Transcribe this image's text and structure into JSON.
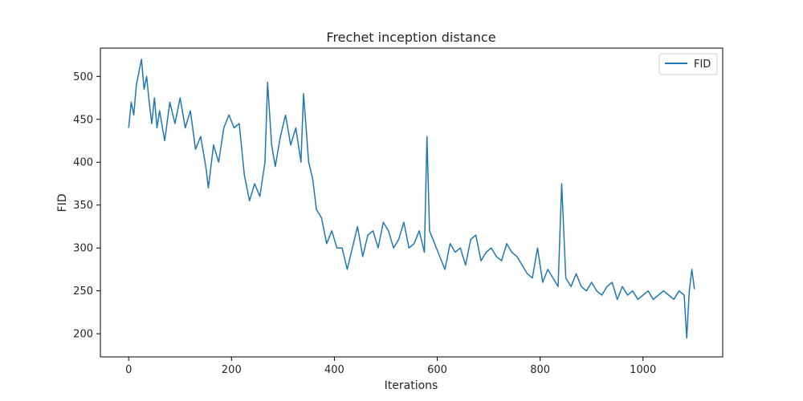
{
  "chart_data": {
    "type": "line",
    "title": "Frechet inception distance",
    "xlabel": "Iterations",
    "ylabel": "FID",
    "xlim": [
      -55,
      1155
    ],
    "ylim": [
      173,
      533
    ],
    "xticks": [
      0,
      200,
      400,
      600,
      800,
      1000
    ],
    "yticks": [
      200,
      250,
      300,
      350,
      400,
      450,
      500
    ],
    "legend_position": "upper-right",
    "grid": false,
    "series": [
      {
        "name": "FID",
        "color": "#1f77b4",
        "points": [
          [
            0,
            440
          ],
          [
            5,
            470
          ],
          [
            10,
            455
          ],
          [
            15,
            490
          ],
          [
            20,
            505
          ],
          [
            25,
            520
          ],
          [
            30,
            485
          ],
          [
            35,
            500
          ],
          [
            40,
            470
          ],
          [
            45,
            445
          ],
          [
            50,
            475
          ],
          [
            55,
            440
          ],
          [
            60,
            460
          ],
          [
            70,
            425
          ],
          [
            80,
            470
          ],
          [
            90,
            445
          ],
          [
            100,
            475
          ],
          [
            110,
            440
          ],
          [
            120,
            460
          ],
          [
            130,
            415
          ],
          [
            140,
            430
          ],
          [
            150,
            395
          ],
          [
            155,
            370
          ],
          [
            165,
            420
          ],
          [
            175,
            400
          ],
          [
            185,
            440
          ],
          [
            195,
            455
          ],
          [
            205,
            440
          ],
          [
            215,
            445
          ],
          [
            225,
            385
          ],
          [
            235,
            355
          ],
          [
            245,
            375
          ],
          [
            255,
            360
          ],
          [
            265,
            400
          ],
          [
            270,
            493
          ],
          [
            278,
            420
          ],
          [
            285,
            395
          ],
          [
            295,
            430
          ],
          [
            305,
            455
          ],
          [
            315,
            420
          ],
          [
            325,
            440
          ],
          [
            335,
            400
          ],
          [
            340,
            480
          ],
          [
            350,
            400
          ],
          [
            358,
            380
          ],
          [
            365,
            345
          ],
          [
            375,
            335
          ],
          [
            385,
            305
          ],
          [
            395,
            320
          ],
          [
            405,
            300
          ],
          [
            415,
            300
          ],
          [
            425,
            275
          ],
          [
            435,
            300
          ],
          [
            445,
            325
          ],
          [
            455,
            290
          ],
          [
            465,
            315
          ],
          [
            475,
            320
          ],
          [
            485,
            300
          ],
          [
            495,
            330
          ],
          [
            505,
            320
          ],
          [
            515,
            300
          ],
          [
            525,
            310
          ],
          [
            535,
            330
          ],
          [
            545,
            300
          ],
          [
            555,
            305
          ],
          [
            565,
            320
          ],
          [
            575,
            295
          ],
          [
            580,
            430
          ],
          [
            585,
            320
          ],
          [
            595,
            305
          ],
          [
            605,
            290
          ],
          [
            615,
            275
          ],
          [
            625,
            305
          ],
          [
            635,
            295
          ],
          [
            645,
            300
          ],
          [
            655,
            280
          ],
          [
            665,
            310
          ],
          [
            675,
            315
          ],
          [
            685,
            285
          ],
          [
            695,
            295
          ],
          [
            705,
            300
          ],
          [
            715,
            290
          ],
          [
            725,
            285
          ],
          [
            735,
            305
          ],
          [
            745,
            295
          ],
          [
            755,
            290
          ],
          [
            765,
            280
          ],
          [
            775,
            270
          ],
          [
            785,
            265
          ],
          [
            795,
            300
          ],
          [
            805,
            260
          ],
          [
            815,
            275
          ],
          [
            825,
            265
          ],
          [
            835,
            255
          ],
          [
            842,
            375
          ],
          [
            850,
            265
          ],
          [
            860,
            255
          ],
          [
            870,
            270
          ],
          [
            880,
            255
          ],
          [
            890,
            250
          ],
          [
            900,
            260
          ],
          [
            910,
            250
          ],
          [
            920,
            245
          ],
          [
            930,
            255
          ],
          [
            940,
            260
          ],
          [
            950,
            240
          ],
          [
            960,
            255
          ],
          [
            970,
            245
          ],
          [
            980,
            250
          ],
          [
            990,
            240
          ],
          [
            1000,
            245
          ],
          [
            1010,
            250
          ],
          [
            1020,
            240
          ],
          [
            1030,
            245
          ],
          [
            1040,
            250
          ],
          [
            1050,
            245
          ],
          [
            1060,
            240
          ],
          [
            1070,
            250
          ],
          [
            1080,
            245
          ],
          [
            1085,
            195
          ],
          [
            1090,
            250
          ],
          [
            1095,
            275
          ],
          [
            1100,
            252
          ]
        ]
      }
    ]
  }
}
